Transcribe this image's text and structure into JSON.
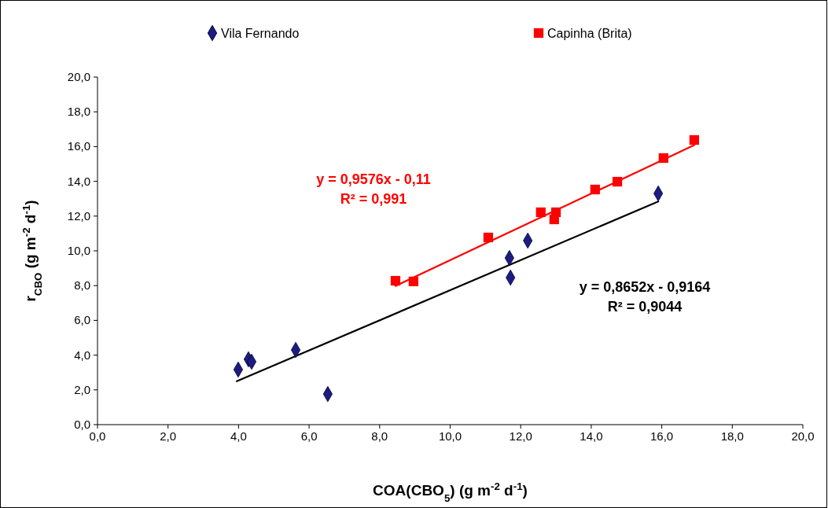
{
  "chart_data": {
    "type": "scatter",
    "xlabel": "COA(CBO$_{5}$) (g m$^{-2}$ d$^{-1}$)",
    "ylabel": "r$_{CBO}$ (g m$^{-2}$ d$^{-1}$)",
    "xlim": [
      0,
      20
    ],
    "ylim": [
      0,
      20
    ],
    "xticks": [
      {
        "value": 0,
        "label": "0,0"
      },
      {
        "value": 2,
        "label": "2,0"
      },
      {
        "value": 4,
        "label": "4,0"
      },
      {
        "value": 6,
        "label": "6,0"
      },
      {
        "value": 8,
        "label": "8,0"
      },
      {
        "value": 10,
        "label": "10,0"
      },
      {
        "value": 12,
        "label": "12,0"
      },
      {
        "value": 14,
        "label": "14,0"
      },
      {
        "value": 16,
        "label": "16,0"
      },
      {
        "value": 18,
        "label": "18,0"
      },
      {
        "value": 20,
        "label": "20,0"
      }
    ],
    "yticks": [
      {
        "value": 0,
        "label": "0,0"
      },
      {
        "value": 2,
        "label": "2,0"
      },
      {
        "value": 4,
        "label": "4,0"
      },
      {
        "value": 6,
        "label": "6,0"
      },
      {
        "value": 8,
        "label": "8,0"
      },
      {
        "value": 10,
        "label": "10,0"
      },
      {
        "value": 12,
        "label": "12,0"
      },
      {
        "value": 14,
        "label": "14,0"
      },
      {
        "value": 16,
        "label": "16,0"
      },
      {
        "value": 18,
        "label": "18,0"
      },
      {
        "value": 20,
        "label": "20,0"
      }
    ],
    "grid": false,
    "legend": "top",
    "series": [
      {
        "name": "Vila Fernando",
        "marker": "diamond",
        "color": "#1c1c80",
        "x": [
          3.99,
          4.28,
          4.37,
          5.62,
          6.53,
          11.68,
          11.71,
          12.2,
          15.9
        ],
        "values": [
          3.17,
          3.76,
          3.62,
          4.3,
          1.76,
          9.59,
          8.46,
          10.59,
          13.3
        ]
      },
      {
        "name": "Capinha (Brita)",
        "marker": "square",
        "color": "#ff0000",
        "x": [
          8.45,
          8.96,
          11.08,
          12.57,
          12.95,
          13.0,
          14.11,
          14.74,
          16.05,
          16.92
        ],
        "values": [
          8.28,
          8.24,
          10.77,
          12.22,
          11.81,
          12.22,
          13.53,
          13.98,
          15.34,
          16.38
        ]
      },
      {
        "type": "line",
        "line_style": "solid",
        "color": "#ff0000",
        "x": [
          8.45,
          16.92
        ],
        "values": [
          7.98,
          16.09
        ]
      },
      {
        "type": "line",
        "line_style": "solid",
        "color": "#000000",
        "x": [
          3.95,
          15.9
        ],
        "values": [
          2.5,
          12.84
        ]
      }
    ],
    "annotations": [
      "y = 0,9576x - 0,11",
      "R² = 0,991",
      "y = 0,8652x - 0,9164",
      "R² = 0,9044"
    ]
  }
}
